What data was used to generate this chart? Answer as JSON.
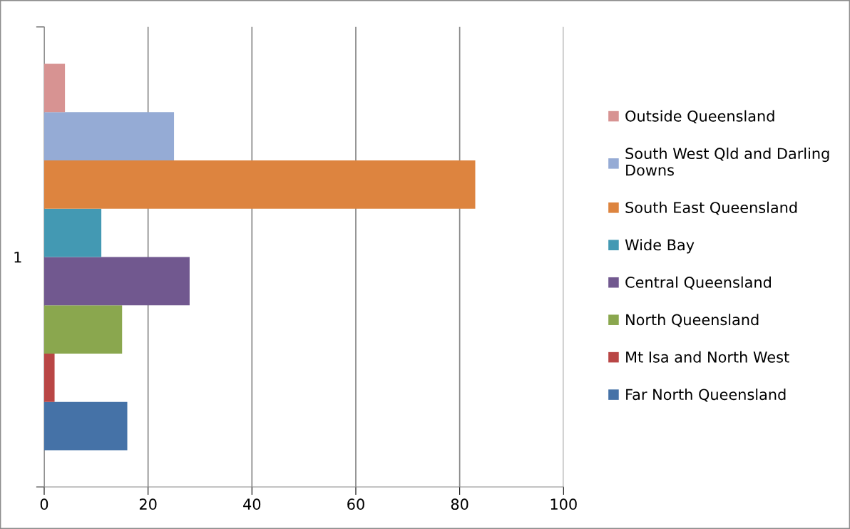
{
  "chart_data": {
    "type": "bar",
    "orientation": "horizontal",
    "categories": [
      "1"
    ],
    "series": [
      {
        "name": "Far North Queensland",
        "color": "#4572a7",
        "values": [
          16
        ]
      },
      {
        "name": "Mt Isa and North West",
        "color": "#b94645",
        "values": [
          2
        ]
      },
      {
        "name": "North Queensland",
        "color": "#8aa74e",
        "values": [
          15
        ]
      },
      {
        "name": "Central Queensland",
        "color": "#71588f",
        "values": [
          28
        ]
      },
      {
        "name": "Wide Bay",
        "color": "#4399b3",
        "values": [
          11
        ]
      },
      {
        "name": "South East Queensland",
        "color": "#dd843f",
        "values": [
          83
        ]
      },
      {
        "name": "South West Qld and Darling Downs",
        "color": "#95abd5",
        "values": [
          25
        ]
      },
      {
        "name": "Outside Queensland",
        "color": "#d79392",
        "values": [
          4
        ]
      }
    ],
    "xlim": [
      0,
      100
    ],
    "xticks": [
      0,
      20,
      40,
      60,
      80,
      100
    ],
    "grid": "x",
    "legend": "right"
  }
}
